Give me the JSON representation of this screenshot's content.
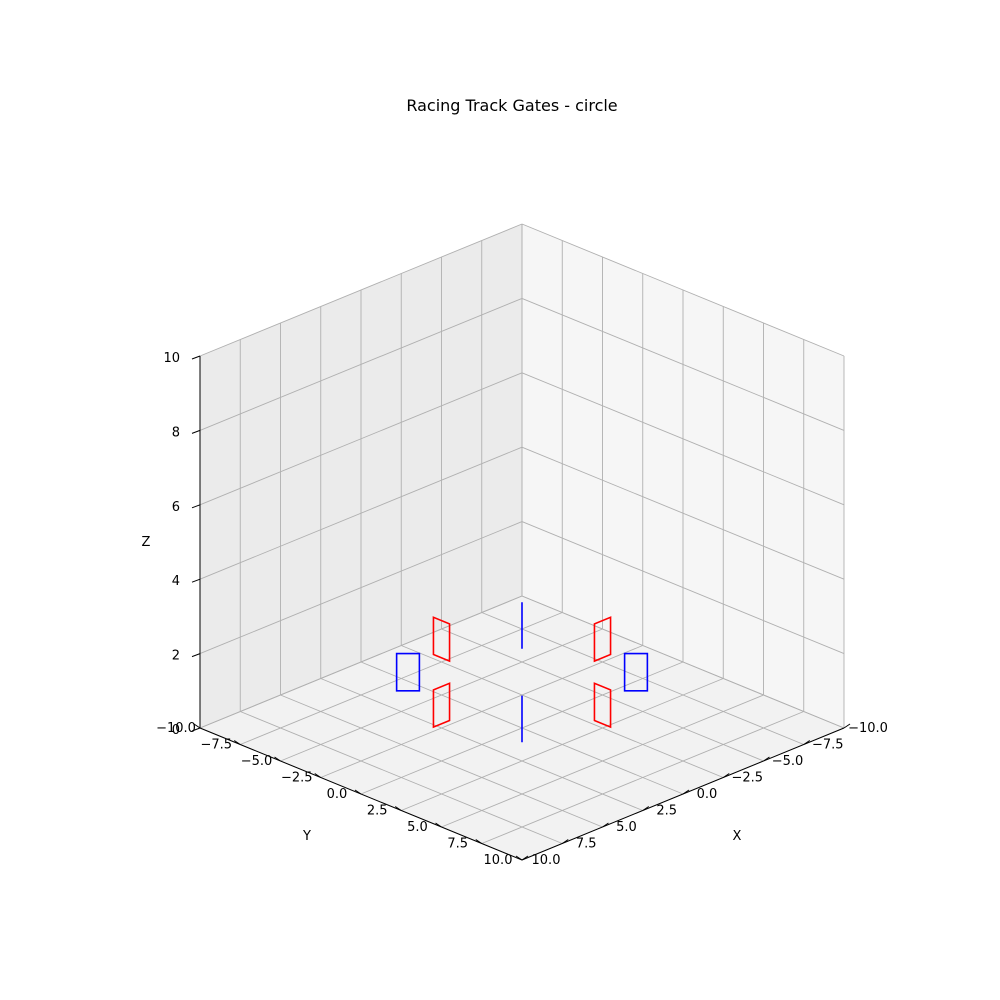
{
  "chart_data": {
    "type": "3d-wireframe",
    "title": "Racing Track Gates - circle",
    "xlabel": "X",
    "ylabel": "Y",
    "zlabel": "Z",
    "xlim": [
      -10,
      10
    ],
    "ylim": [
      -10,
      10
    ],
    "zlim": [
      0,
      10
    ],
    "grid": true,
    "view": {
      "elev": 30,
      "azim": 45
    },
    "xticks": [
      -10,
      -7.5,
      -5,
      -2.5,
      0,
      2.5,
      5,
      7.5,
      10
    ],
    "yticks": [
      -10,
      -7.5,
      -5,
      -2.5,
      0,
      2.5,
      5,
      7.5,
      10
    ],
    "zticks": [
      0,
      2,
      4,
      6,
      8,
      10
    ],
    "xtick_labels": [
      "−10.0",
      "−7.5",
      "−5.0",
      "−2.5",
      "0.0",
      "2.5",
      "5.0",
      "7.5",
      "10.0"
    ],
    "ytick_labels": [
      "−10.0",
      "−7.5",
      "−5.0",
      "−2.5",
      "0.0",
      "2.5",
      "5.0",
      "7.5",
      "10.0"
    ],
    "ztick_labels": [
      "0",
      "2",
      "4",
      "6",
      "8",
      "10"
    ],
    "gate_width": 1.0,
    "gate_height": 1.0,
    "gates": [
      {
        "x": 5,
        "y": 0,
        "z": 1.5,
        "heading_deg": 90,
        "color": "#ff0000"
      },
      {
        "x": 3.54,
        "y": 3.54,
        "z": 1.5,
        "heading_deg": 135,
        "color": "#0000ff"
      },
      {
        "x": 0,
        "y": 5,
        "z": 1.5,
        "heading_deg": 180,
        "color": "#ff0000"
      },
      {
        "x": -3.54,
        "y": 3.54,
        "z": 1.5,
        "heading_deg": 225,
        "color": "#0000ff"
      },
      {
        "x": -5,
        "y": 0,
        "z": 1.5,
        "heading_deg": 270,
        "color": "#ff0000"
      },
      {
        "x": -3.54,
        "y": -3.54,
        "z": 1.5,
        "heading_deg": 315,
        "color": "#0000ff"
      },
      {
        "x": 0,
        "y": -5,
        "z": 1.5,
        "heading_deg": 0,
        "color": "#ff0000"
      },
      {
        "x": 3.54,
        "y": -3.54,
        "z": 1.5,
        "heading_deg": 45,
        "color": "#0000ff"
      }
    ]
  }
}
